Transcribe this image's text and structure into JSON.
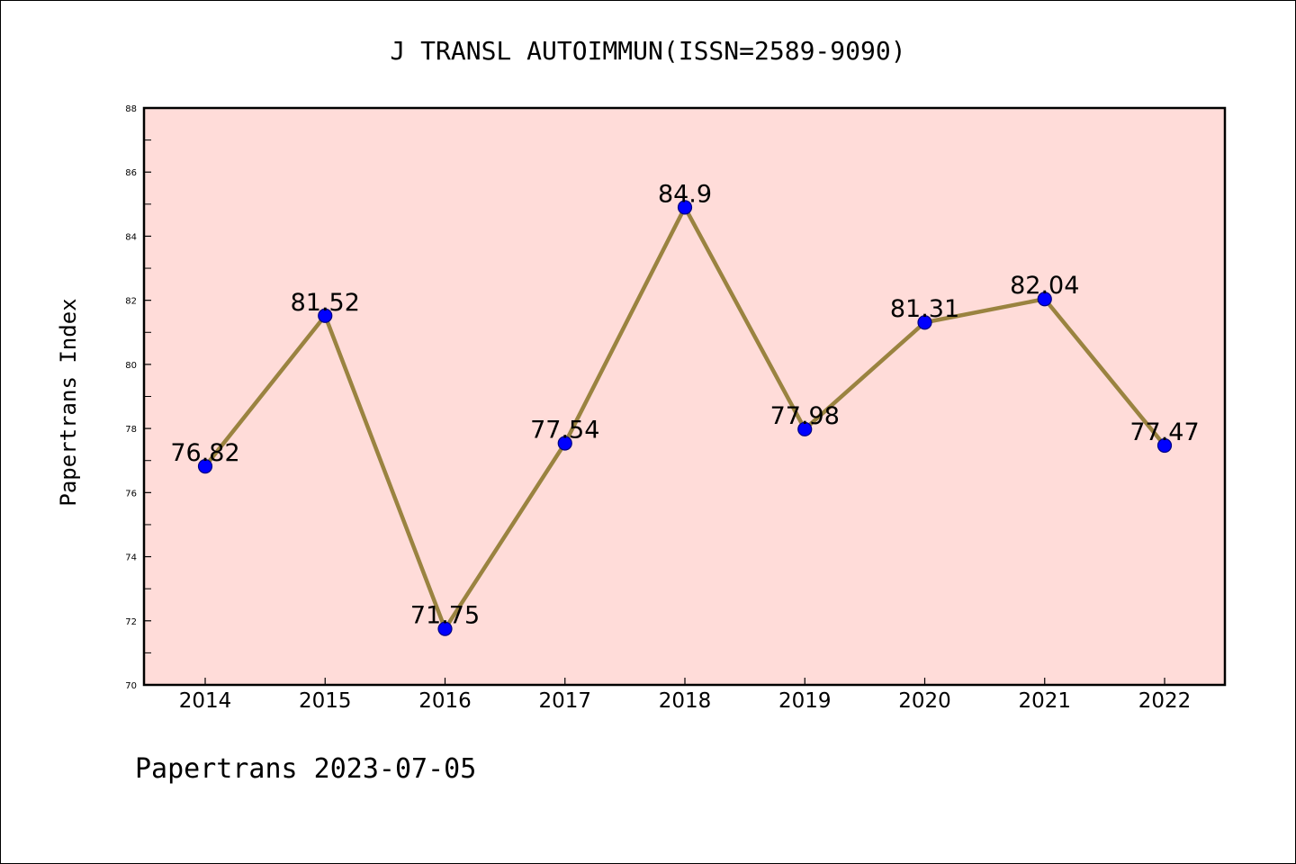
{
  "chart_data": {
    "type": "line",
    "title": "J TRANSL AUTOIMMUN(ISSN=2589-9090)",
    "xlabel": "",
    "ylabel": "Papertrans Index",
    "footer": "Papertrans 2023-07-05",
    "categories": [
      "2014",
      "2015",
      "2016",
      "2017",
      "2018",
      "2019",
      "2020",
      "2021",
      "2022"
    ],
    "series": [
      {
        "values": [
          76.82,
          81.52,
          71.75,
          77.54,
          84.9,
          77.98,
          81.31,
          82.04,
          77.47
        ],
        "labels": [
          "76.82",
          "81.52",
          "71.75",
          "77.54",
          "84.9",
          "77.98",
          "81.31",
          "82.04",
          "77.47"
        ]
      }
    ],
    "ylim": [
      70,
      88
    ],
    "yticks": [
      "70",
      "72",
      "74",
      "76",
      "78",
      "80",
      "82",
      "84",
      "86",
      "88"
    ],
    "grid": false,
    "colors": {
      "plot_background": "#ffdcd9",
      "line": "#9a8340",
      "marker": "#0000ff",
      "marker_edge": "#000080"
    }
  }
}
